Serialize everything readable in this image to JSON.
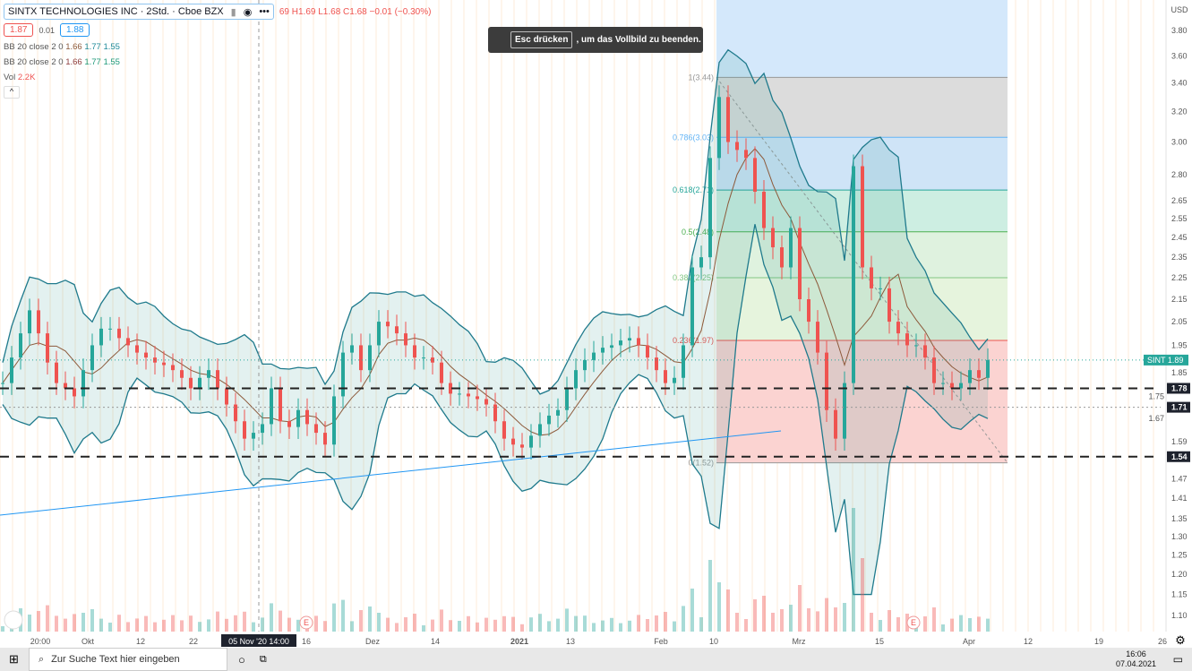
{
  "header": {
    "title": "SINTX TECHNOLOGIES INC · 2Std. · Cboe BZX",
    "ohlc": "69 H1.69 L1.68 C1.68 −0.01 (−0.30%)",
    "bid": "1.87",
    "spread": "0.01",
    "ask": "1.88",
    "indicators": [
      {
        "label": "BB 20 close 2 0",
        "v1": "1.66",
        "v2": "1.77",
        "v3": "1.55"
      },
      {
        "label": "BB 20 close 2 0",
        "v1": "1.66",
        "v2": "1.77",
        "v3": "1.55"
      }
    ],
    "vol_label": "Vol",
    "vol_value": "2.2K"
  },
  "notice": {
    "key": "Esc drücken",
    "text": ", um das Vollbild zu beenden."
  },
  "taskbar": {
    "search_placeholder": "Zur Suche Text hier eingeben",
    "time": "16:06",
    "date": "07.04.2021"
  },
  "colors": {
    "up": "#26a69a",
    "down": "#ef5350",
    "band": "#1f7a8c",
    "basis": "#8d5a3b",
    "trend": "#2196f3"
  },
  "chart_data": {
    "type": "candlestick",
    "symbol": "SINT",
    "currency": "USD",
    "scale": "log",
    "ylim": [
      1.07,
      3.9
    ],
    "y_ticks": [
      "3.80",
      "3.60",
      "3.40",
      "3.20",
      "3.00",
      "2.80",
      "2.65",
      "2.55",
      "2.45",
      "2.35",
      "2.25",
      "2.15",
      "2.05",
      "1.95",
      "1.85",
      "1.75",
      "1.67",
      "1.59",
      "1.47",
      "1.41",
      "1.35",
      "1.30",
      "1.25",
      "1.20",
      "1.15",
      "1.10"
    ],
    "x_ticks": [
      "20:00",
      "Okt",
      "12",
      "22",
      "16",
      "Dez",
      "14",
      "2021",
      "13",
      "Feb",
      "10",
      "Mrz",
      "15",
      "Apr",
      "12",
      "19",
      "26"
    ],
    "crosshair_x_label": "05 Nov '20  14:00",
    "last_price": "1.89",
    "price_labels": [
      "1.78",
      "1.71",
      "1.54"
    ],
    "horizontal_lines": [
      1.78,
      1.71,
      1.54
    ],
    "fib_levels": [
      {
        "r": "1",
        "p": 3.44
      },
      {
        "r": "0.786",
        "p": 3.03
      },
      {
        "r": "0.618",
        "p": 2.71
      },
      {
        "r": "0.5",
        "p": 2.48
      },
      {
        "r": "0.382",
        "p": 2.25
      },
      {
        "r": "0.236",
        "p": 1.97
      },
      {
        "r": "0",
        "p": 1.52
      }
    ],
    "closes": [
      1.8,
      1.9,
      2.0,
      2.1,
      2.0,
      1.88,
      1.8,
      1.78,
      1.75,
      1.85,
      1.95,
      2.02,
      2.02,
      1.98,
      1.95,
      1.92,
      1.9,
      1.88,
      1.87,
      1.85,
      1.82,
      1.78,
      1.82,
      1.85,
      1.78,
      1.72,
      1.66,
      1.6,
      1.62,
      1.65,
      1.78,
      1.66,
      1.64,
      1.7,
      1.65,
      1.62,
      1.58,
      1.75,
      1.92,
      1.95,
      1.85,
      1.95,
      2.05,
      2.03,
      2.0,
      1.95,
      1.9,
      1.9,
      1.88,
      1.8,
      1.76,
      1.76,
      1.75,
      1.74,
      1.72,
      1.66,
      1.6,
      1.58,
      1.57,
      1.61,
      1.65,
      1.68,
      1.7,
      1.78,
      1.85,
      1.89,
      1.92,
      1.94,
      1.95,
      1.97,
      1.98,
      1.95,
      1.9,
      1.85,
      1.8,
      1.82,
      1.95,
      2.3,
      2.35,
      2.9,
      3.3,
      3.0,
      2.95,
      2.9,
      2.7,
      2.5,
      2.4,
      2.3,
      2.5,
      2.15,
      2.05,
      1.92,
      1.7,
      1.6,
      1.8,
      2.85,
      2.3,
      2.2,
      2.2,
      2.05,
      2.0,
      1.95,
      1.95,
      1.9,
      1.8,
      1.8,
      1.78,
      1.8,
      1.85,
      1.82,
      1.89
    ]
  }
}
